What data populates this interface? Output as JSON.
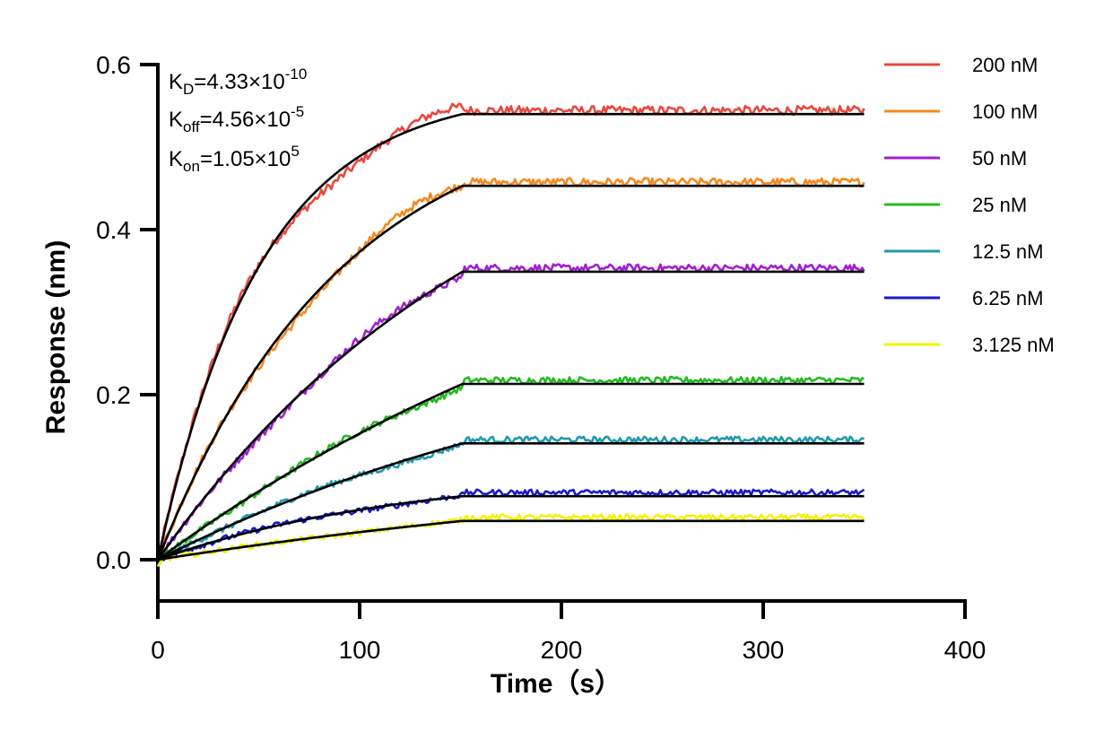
{
  "chart_data": {
    "type": "line",
    "title": "",
    "xlabel": "Time（s）",
    "ylabel": "Response (nm)",
    "xlim": [
      0,
      400
    ],
    "ylim": [
      -0.05,
      0.6
    ],
    "x_ticks": [
      0,
      100,
      200,
      300,
      400
    ],
    "y_ticks": [
      0.0,
      0.2,
      0.4,
      0.6
    ],
    "x_tick_labels": [
      "0",
      "100",
      "200",
      "300",
      "400"
    ],
    "y_tick_labels": [
      "0.0",
      "0.2",
      "0.4",
      "0.6"
    ],
    "grid": false,
    "legend_position": "right",
    "association_end_time": 151,
    "end_time": 350,
    "fit_color": "#000000",
    "annotations": {
      "kd": {
        "base": "K",
        "sub": "D",
        "text": "=4.33×10",
        "sup": "-10"
      },
      "koff": {
        "base": "K",
        "sub": "off",
        "text": "=4.56×10",
        "sup": "-5"
      },
      "kon": {
        "base": "K",
        "sub": "on",
        "text": "=1.05×10",
        "sup": "5"
      }
    },
    "series": [
      {
        "name": "200 nM",
        "color": "#e8483e",
        "plateau": 0.54,
        "k_obs": 0.0195
      },
      {
        "name": "100 nM",
        "color": "#f5891f",
        "plateau": 0.453,
        "k_obs": 0.011
      },
      {
        "name": "50 nM",
        "color": "#a020d0",
        "plateau": 0.349,
        "k_obs": 0.0058
      },
      {
        "name": "25 nM",
        "color": "#22bb22",
        "plateau": 0.213,
        "k_obs": 0.0034
      },
      {
        "name": "12.5 nM",
        "color": "#2299b0",
        "plateau": 0.141,
        "k_obs": 0.004
      },
      {
        "name": "6.25 nM",
        "color": "#1a1acc",
        "plateau": 0.077,
        "k_obs": 0.008
      },
      {
        "name": "3.125 nM",
        "color": "#f2f20a",
        "plateau": 0.047,
        "k_obs": 0.003
      }
    ]
  }
}
